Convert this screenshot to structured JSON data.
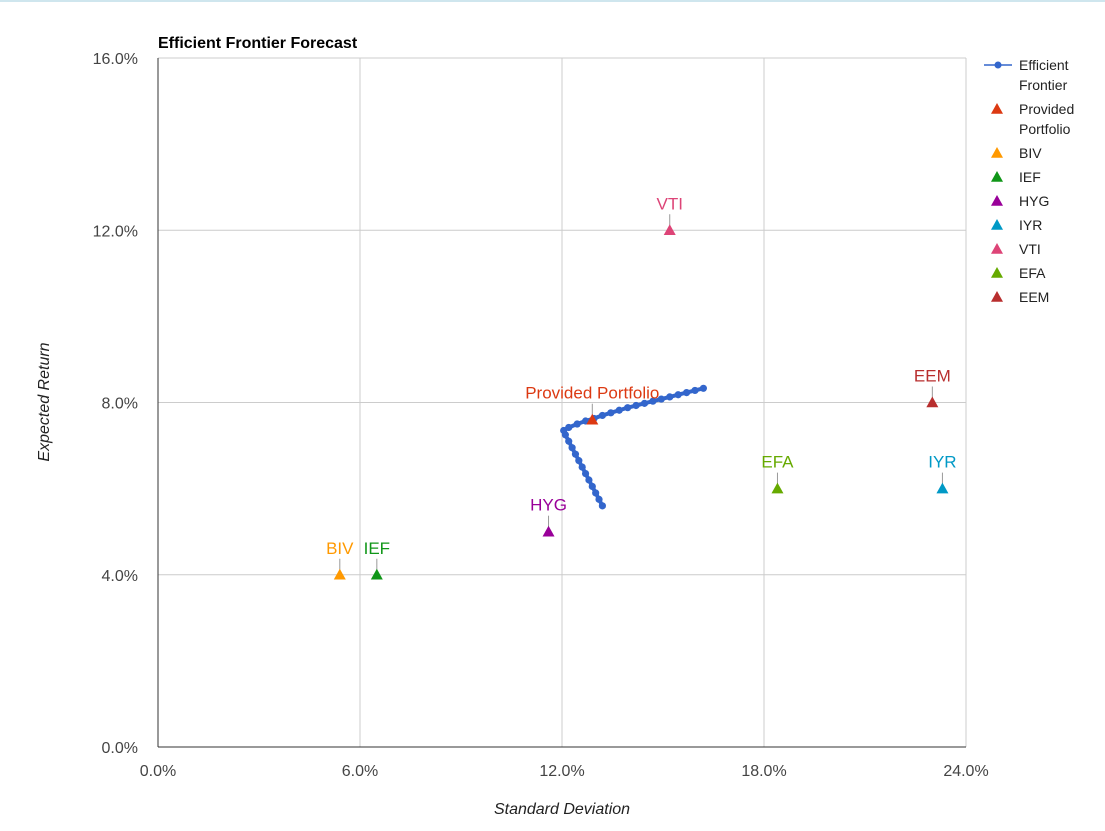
{
  "chart_data": {
    "type": "scatter",
    "title": "Efficient Frontier Forecast",
    "xlabel": "Standard Deviation",
    "ylabel": "Expected Return",
    "xlim": [
      0,
      24
    ],
    "ylim": [
      0,
      16
    ],
    "x_ticks": [
      "0.0%",
      "6.0%",
      "12.0%",
      "18.0%",
      "24.0%"
    ],
    "y_ticks": [
      "0.0%",
      "4.0%",
      "8.0%",
      "12.0%",
      "16.0%"
    ],
    "x_tick_values": [
      0,
      6,
      12,
      18,
      24
    ],
    "y_tick_values": [
      0,
      4,
      8,
      12,
      16
    ],
    "grid": true,
    "legend_position": "right",
    "frontier": {
      "name": "Efficient Frontier",
      "color": "#3366cc",
      "points": [
        [
          13.2,
          5.6
        ],
        [
          13.1,
          5.75
        ],
        [
          13.0,
          5.9
        ],
        [
          12.9,
          6.05
        ],
        [
          12.8,
          6.2
        ],
        [
          12.7,
          6.35
        ],
        [
          12.6,
          6.5
        ],
        [
          12.5,
          6.65
        ],
        [
          12.4,
          6.8
        ],
        [
          12.3,
          6.95
        ],
        [
          12.2,
          7.1
        ],
        [
          12.1,
          7.25
        ],
        [
          12.05,
          7.35
        ],
        [
          12.2,
          7.42
        ],
        [
          12.45,
          7.5
        ],
        [
          12.7,
          7.57
        ],
        [
          12.95,
          7.63
        ],
        [
          13.2,
          7.7
        ],
        [
          13.45,
          7.76
        ],
        [
          13.7,
          7.82
        ],
        [
          13.95,
          7.88
        ],
        [
          14.2,
          7.93
        ],
        [
          14.45,
          7.98
        ],
        [
          14.7,
          8.03
        ],
        [
          14.95,
          8.08
        ],
        [
          15.2,
          8.13
        ],
        [
          15.45,
          8.18
        ],
        [
          15.7,
          8.23
        ],
        [
          15.95,
          8.28
        ],
        [
          16.2,
          8.33
        ]
      ]
    },
    "series": [
      {
        "name": "Provided Portfolio",
        "x": 12.9,
        "y": 7.6,
        "color": "#dc3912",
        "label": "Provided Portfolio"
      },
      {
        "name": "BIV",
        "x": 5.4,
        "y": 4.0,
        "color": "#ff9900",
        "label": "BIV"
      },
      {
        "name": "IEF",
        "x": 6.5,
        "y": 4.0,
        "color": "#109618",
        "label": "IEF"
      },
      {
        "name": "HYG",
        "x": 11.6,
        "y": 5.0,
        "color": "#990099",
        "label": "HYG"
      },
      {
        "name": "IYR",
        "x": 23.3,
        "y": 6.0,
        "color": "#0099c6",
        "label": "IYR"
      },
      {
        "name": "VTI",
        "x": 15.2,
        "y": 12.0,
        "color": "#dd4477",
        "label": "VTI"
      },
      {
        "name": "EFA",
        "x": 18.4,
        "y": 6.0,
        "color": "#66aa00",
        "label": "EFA"
      },
      {
        "name": "EEM",
        "x": 23.0,
        "y": 8.0,
        "color": "#b82e2e",
        "label": "EEM"
      }
    ],
    "legend": [
      {
        "label": "Efficient Frontier",
        "color": "#3366cc",
        "symbol": "line-dot"
      },
      {
        "label": "Provided Portfolio",
        "color": "#dc3912",
        "symbol": "triangle"
      },
      {
        "label": "BIV",
        "color": "#ff9900",
        "symbol": "triangle"
      },
      {
        "label": "IEF",
        "color": "#109618",
        "symbol": "triangle"
      },
      {
        "label": "HYG",
        "color": "#990099",
        "symbol": "triangle"
      },
      {
        "label": "IYR",
        "color": "#0099c6",
        "symbol": "triangle"
      },
      {
        "label": "VTI",
        "color": "#dd4477",
        "symbol": "triangle"
      },
      {
        "label": "EFA",
        "color": "#66aa00",
        "symbol": "triangle"
      },
      {
        "label": "EEM",
        "color": "#b82e2e",
        "symbol": "triangle"
      }
    ]
  }
}
